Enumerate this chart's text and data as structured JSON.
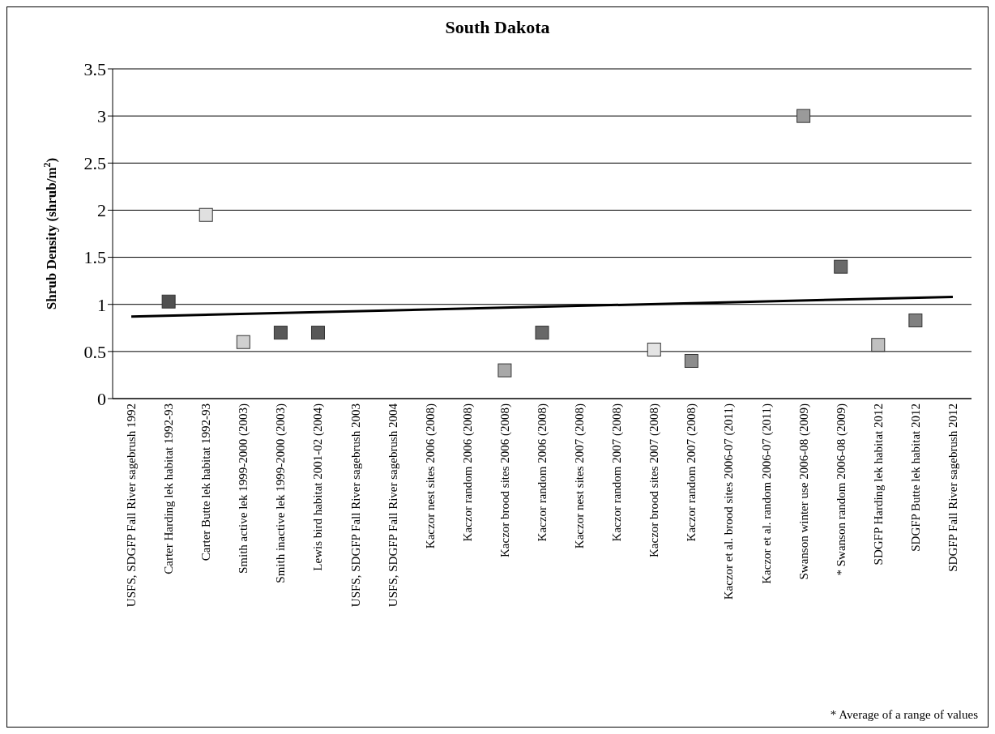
{
  "chart_data": {
    "type": "scatter",
    "title": "South Dakota",
    "ylabel": "Shrub Density (shrub/m$^{2}$)",
    "categories": [
      "USFS, SDGFP Fall River sagebrush 1992",
      "Carter Harding lek habitat 1992-93",
      "Carter Butte lek habitat 1992-93",
      "Smith active lek 1999-2000 (2003)",
      "Smith inactive lek 1999-2000 (2003)",
      "Lewis bird habitat 2001-02 (2004)",
      "USFS, SDGFP Fall River sagebrush 2003",
      "USFS, SDGFP Fall River sagebrush 2004",
      "Kaczor nest sites 2006 (2008)",
      "Kaczor random 2006 (2008)",
      "Kaczor brood sites 2006 (2008)",
      "Kaczor random 2006 (2008)",
      "Kaczor nest sites  2007 (2008)",
      "Kaczor random 2007 (2008)",
      "Kaczor brood sites 2007 (2008)",
      "Kaczor random 2007 (2008)",
      "Kaczor et al. brood sites 2006-07 (2011)",
      "Kaczor et al. random 2006-07 (2011)",
      "Swanson winter use 2006-08 (2009)",
      "* Swanson random 2006-08 (2009)",
      "SDGFP Harding lek habitat 2012",
      "SDGFP Butte lek habitat 2012",
      "SDGFP Fall River sagebrush 2012"
    ],
    "series": [
      {
        "marker": "square",
        "values": [
          null,
          1.03,
          1.95,
          0.6,
          0.7,
          0.7,
          null,
          null,
          null,
          null,
          0.3,
          0.7,
          null,
          null,
          0.52,
          0.4,
          null,
          null,
          3,
          1.4,
          0.57,
          0.83,
          null
        ],
        "colors": [
          null,
          "#505050",
          "#e0e0e0",
          "#d0d0d0",
          "#585858",
          "#585858",
          null,
          null,
          null,
          null,
          "#a8a8a8",
          "#686868",
          null,
          null,
          "#e4e4e4",
          "#8c8c8c",
          null,
          null,
          "#9a9a9a",
          "#6a6a6a",
          "#c0c0c0",
          "#808080",
          null
        ]
      },
      {
        "type": "line",
        "x": [
          "USFS, SDGFP Fall River sagebrush 1992",
          "SDGFP Fall River sagebrush 2012"
        ],
        "values": [
          0.87,
          1.08
        ],
        "color": "#000000"
      }
    ],
    "ylim": [
      0,
      3.5
    ],
    "yticks": [
      0,
      0.5,
      1,
      1.5,
      2,
      2.5,
      3,
      3.5
    ],
    "grid": "y",
    "legend": false,
    "annotations": [
      "* Average of a range of values"
    ]
  }
}
